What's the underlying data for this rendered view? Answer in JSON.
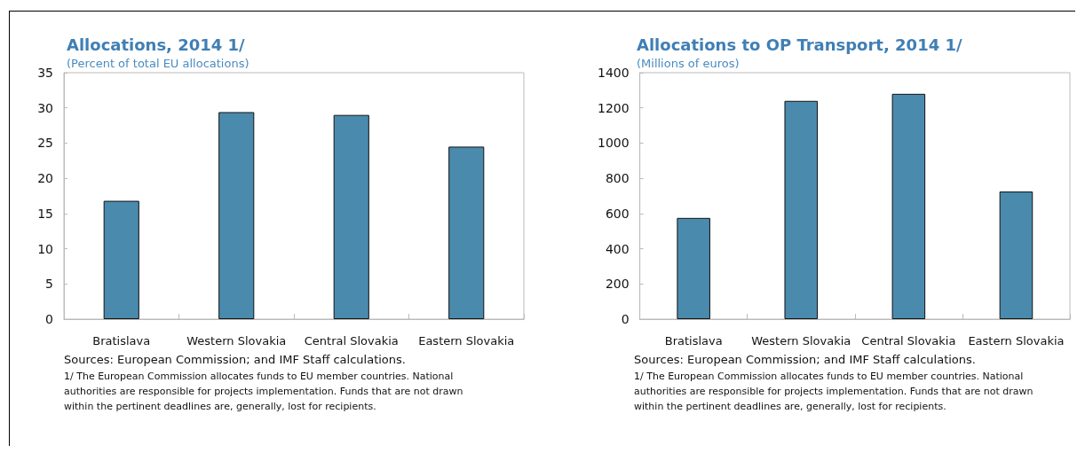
{
  "chart_data": [
    {
      "type": "bar",
      "title": "Allocations, 2014 1/",
      "subtitle": "(Percent of total EU allocations)",
      "categories": [
        "Bratislava",
        "Western Slovakia",
        "Central Slovakia",
        "Eastern Slovakia"
      ],
      "series": [
        {
          "color": "#4a8aad",
          "values": [
            16.8,
            29.4,
            29.0,
            24.5
          ]
        }
      ],
      "ylim": [
        0,
        35
      ],
      "yticks": [
        0,
        5,
        10,
        15,
        20,
        25,
        30,
        35
      ],
      "grid": false,
      "annotations": [
        "Sources: European Commission; and IMF Staff calculations.",
        "1/ The European Commission allocates funds to EU member countries. National authorities are responsible for projects implementation. Funds that are not drawn within the pertinent deadlines are, generally, lost for recipients."
      ]
    },
    {
      "type": "bar",
      "title": "Allocations to OP Transport, 2014 1/",
      "subtitle": "(Millions of euros)",
      "categories": [
        "Bratislava",
        "Western Slovakia",
        "Central Slovakia",
        "Eastern Slovakia"
      ],
      "series": [
        {
          "color": "#4a8aad",
          "values": [
            575,
            1240,
            1280,
            725
          ]
        }
      ],
      "ylim": [
        0,
        1400
      ],
      "yticks": [
        0,
        200,
        400,
        600,
        800,
        1000,
        1200,
        1400
      ],
      "grid": false,
      "annotations": [
        "Sources: European Commission; and IMF Staff calculations.",
        "1/ The European Commission allocates funds to EU member countries. National authorities are responsible for projects implementation. Funds that are not drawn within the pertinent deadlines are, generally, lost for recipients."
      ]
    }
  ]
}
